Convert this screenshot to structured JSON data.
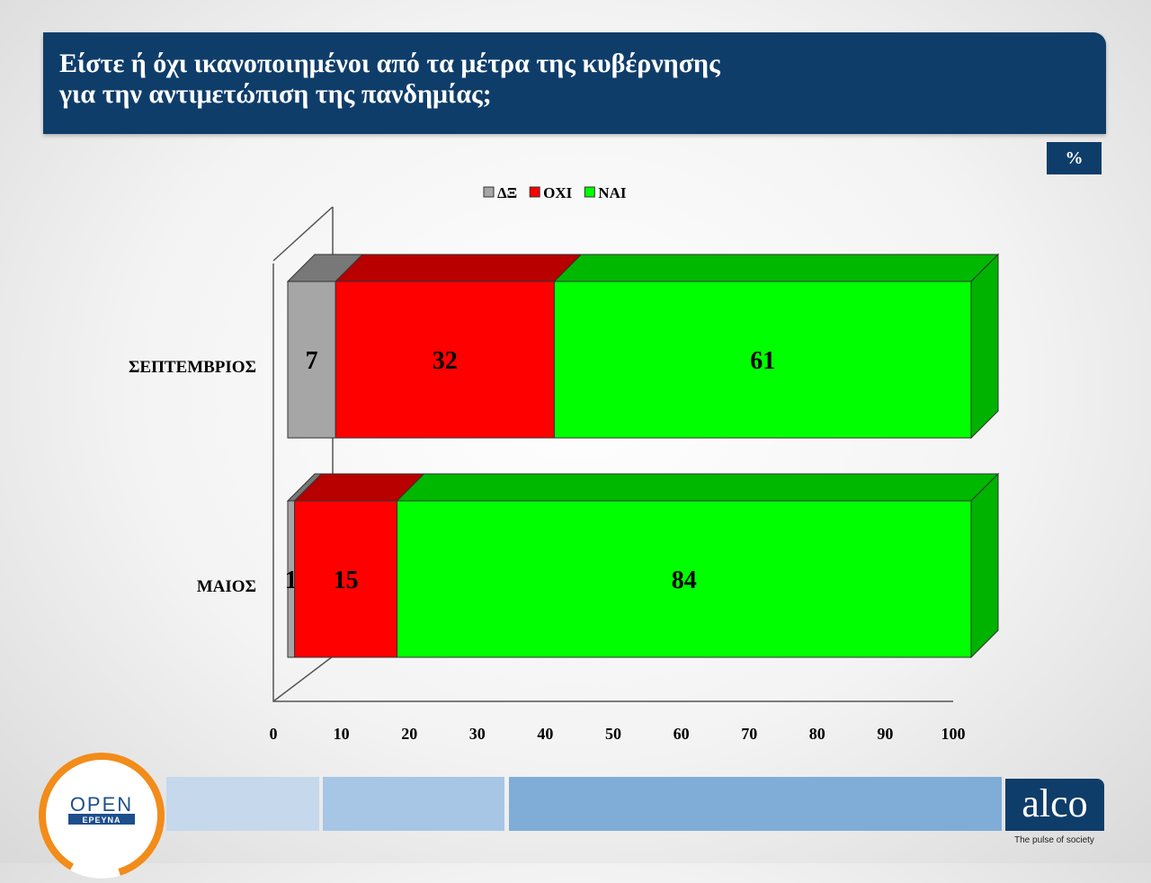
{
  "title": {
    "line1": "Είστε ή όχι ικανοποιημένοι από τα μέτρα της κυβέρνησης",
    "line2": "για την αντιμετώπιση της πανδημίας;"
  },
  "unit_badge": "%",
  "logos": {
    "open_top": "OPEN",
    "open_bottom": "ΕΡΕΥΝΑ",
    "alco": "alco",
    "alco_tagline": "The pulse of society"
  },
  "colors": {
    "title_bg": "#0f3d6a",
    "dk": "#a6a6a6",
    "oxi": "#ff0000",
    "nai": "#00ff00",
    "open_orange": "#f28c1a"
  },
  "chart_data": {
    "type": "bar",
    "orientation": "horizontal",
    "stacked": true,
    "style": "3d",
    "categories": [
      "ΣΕΠΤΕΜΒΡΙΟΣ",
      "ΜΑΙΟΣ"
    ],
    "series": [
      {
        "name": "ΔΞ",
        "color": "#a6a6a6",
        "values": [
          7,
          1
        ]
      },
      {
        "name": "ΟΧΙ",
        "color": "#ff0000",
        "values": [
          32,
          15
        ]
      },
      {
        "name": "ΝΑΙ",
        "color": "#00ff00",
        "values": [
          61,
          84
        ]
      }
    ],
    "xlim": [
      0,
      100
    ],
    "xticks": [
      0,
      10,
      20,
      30,
      40,
      50,
      60,
      70,
      80,
      90,
      100
    ],
    "legend_position": "top-center",
    "grid": false
  }
}
